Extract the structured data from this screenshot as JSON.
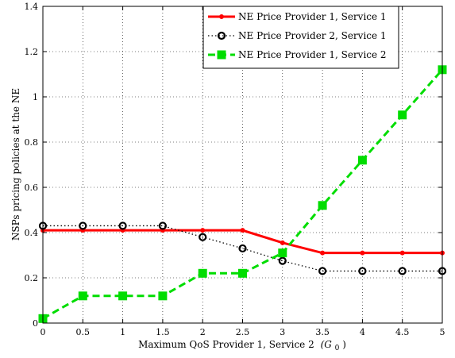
{
  "chart_data": {
    "type": "line",
    "title": "",
    "xlabel": "Maximum QoS Provider 1, Service 2",
    "xlabel_math": "(G",
    "xlabel_sub": "0",
    "xlabel_close": ")",
    "ylabel": "NSPs pricing policies at the NE",
    "xlim": [
      0,
      5
    ],
    "ylim": [
      0,
      1.4
    ],
    "xticks": [
      "0",
      "0.5",
      "1",
      "1.5",
      "2",
      "2.5",
      "3",
      "3.5",
      "4",
      "4.5",
      "5"
    ],
    "yticks": [
      "0",
      "0.2",
      "0.4",
      "0.6",
      "0.8",
      "1",
      "1.2",
      "1.4"
    ],
    "grid": true,
    "legend_position": "top-right",
    "x": [
      0,
      0.5,
      1,
      1.5,
      2,
      2.5,
      3,
      3.5,
      4,
      4.5,
      5
    ],
    "series": [
      {
        "name": "NE Price Provider 1, Service 1",
        "color": "#ff0000",
        "line_style": "solid",
        "marker": "dot",
        "values": [
          0.41,
          0.41,
          0.41,
          0.41,
          0.41,
          0.41,
          0.355,
          0.31,
          0.31,
          0.31,
          0.31
        ]
      },
      {
        "name": "NE Price Provider 2, Service 1",
        "color": "#000000",
        "line_style": "dotted",
        "marker": "circle",
        "values": [
          0.43,
          0.43,
          0.43,
          0.43,
          0.38,
          0.33,
          0.275,
          0.23,
          0.23,
          0.23,
          0.23
        ]
      },
      {
        "name": "NE Price Provider 1, Service 2",
        "color": "#00dd00",
        "line_style": "dashed",
        "marker": "square",
        "values": [
          0.02,
          0.12,
          0.12,
          0.12,
          0.22,
          0.22,
          0.31,
          0.52,
          0.72,
          0.92,
          1.12
        ]
      }
    ]
  }
}
